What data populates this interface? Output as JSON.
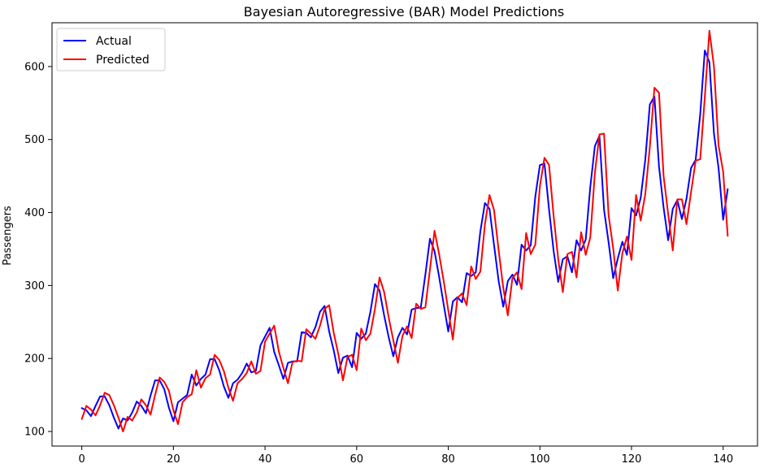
{
  "chart_data": {
    "type": "line",
    "title": "Bayesian Autoregressive (BAR) Model Predictions",
    "xlabel": "",
    "ylabel": "Passengers",
    "xlim": [
      -6.5,
      147.5
    ],
    "ylim": [
      80,
      660
    ],
    "xticks": [
      0,
      20,
      40,
      60,
      80,
      100,
      120,
      140
    ],
    "yticks": [
      100,
      200,
      300,
      400,
      500,
      600
    ],
    "grid": false,
    "legend_position": "top-left",
    "series": [
      {
        "name": "Actual",
        "color": "#0000ff",
        "x_start": 0,
        "values": [
          132,
          129,
          121,
          135,
          148,
          148,
          136,
          119,
          104,
          118,
          115,
          126,
          141,
          135,
          125,
          149,
          170,
          170,
          158,
          133,
          114,
          140,
          145,
          150,
          178,
          163,
          172,
          178,
          199,
          199,
          184,
          162,
          146,
          166,
          171,
          180,
          193,
          181,
          183,
          218,
          230,
          242,
          209,
          191,
          172,
          194,
          196,
          196,
          236,
          235,
          229,
          243,
          264,
          272,
          237,
          211,
          180,
          201,
          204,
          188,
          235,
          227,
          234,
          264,
          302,
          293,
          259,
          229,
          203,
          229,
          242,
          233,
          267,
          269,
          270,
          315,
          364,
          347,
          312,
          274,
          237,
          278,
          284,
          277,
          317,
          313,
          318,
          374,
          413,
          405,
          355,
          306,
          271,
          306,
          315,
          301,
          356,
          348,
          355,
          422,
          465,
          467,
          404,
          347,
          305,
          336,
          340,
          318,
          362,
          348,
          363,
          435,
          491,
          505,
          404,
          359,
          310,
          337,
          360,
          342,
          406,
          396,
          420,
          472,
          548,
          559,
          463,
          407,
          362,
          405,
          417,
          391,
          419,
          461,
          472,
          535,
          622,
          606,
          508,
          461,
          390,
          432
        ]
      },
      {
        "name": "Predicted",
        "color": "#ff0000",
        "x_start": 0,
        "values": [
          117,
          135,
          130,
          122,
          136,
          153,
          150,
          136,
          119,
          100,
          120,
          115,
          126,
          144,
          136,
          123,
          150,
          174,
          168,
          156,
          129,
          110,
          140,
          147,
          151,
          184,
          160,
          173,
          178,
          205,
          198,
          183,
          160,
          142,
          166,
          172,
          180,
          196,
          179,
          183,
          223,
          234,
          245,
          210,
          187,
          166,
          195,
          197,
          196,
          240,
          234,
          227,
          245,
          268,
          273,
          235,
          206,
          170,
          202,
          205,
          184,
          241,
          225,
          234,
          268,
          311,
          291,
          256,
          225,
          194,
          231,
          244,
          228,
          275,
          268,
          270,
          322,
          375,
          343,
          306,
          266,
          226,
          283,
          289,
          273,
          326,
          309,
          319,
          384,
          424,
          403,
          348,
          297,
          259,
          310,
          318,
          295,
          372,
          343,
          356,
          436,
          475,
          465,
          395,
          336,
          291,
          343,
          346,
          311,
          373,
          342,
          366,
          454,
          507,
          508,
          396,
          351,
          293,
          344,
          367,
          335,
          424,
          389,
          425,
          490,
          571,
          564,
          450,
          398,
          348,
          418,
          418,
          384,
          428,
          471,
          473,
          558,
          649,
          600,
          492,
          456,
          368
        ]
      }
    ]
  }
}
